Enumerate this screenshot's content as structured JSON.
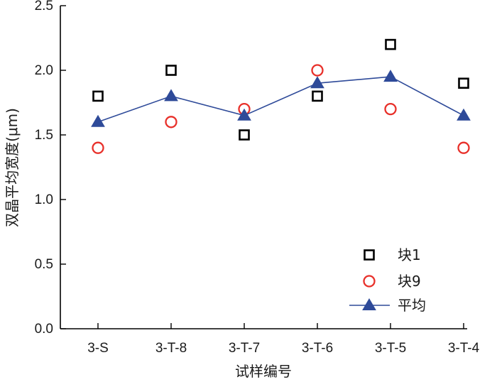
{
  "chart_data": {
    "type": "scatter",
    "xlabel": "试样编号",
    "ylabel": "双晶平均宽度(μm)",
    "categories": [
      "3-S",
      "3-T-8",
      "3-T-7",
      "3-T-6",
      "3-T-5",
      "3-T-4"
    ],
    "ylim": [
      0.0,
      2.5
    ],
    "yticks": [
      "0.0",
      "0.5",
      "1.0",
      "1.5",
      "2.0",
      "2.5"
    ],
    "grid": false,
    "legend_position": "bottom-right",
    "series": [
      {
        "name": "块1",
        "marker": "square",
        "color": "#000000",
        "values": [
          1.8,
          2.0,
          1.5,
          1.8,
          2.2,
          1.9
        ]
      },
      {
        "name": "块9",
        "marker": "circle",
        "color": "#e8302a",
        "values": [
          1.4,
          1.6,
          1.7,
          2.0,
          1.7,
          1.4
        ]
      },
      {
        "name": "平均",
        "marker": "triangle",
        "line": true,
        "color": "#2e4a99",
        "values": [
          1.6,
          1.8,
          1.65,
          1.9,
          1.95,
          1.65
        ]
      }
    ]
  }
}
